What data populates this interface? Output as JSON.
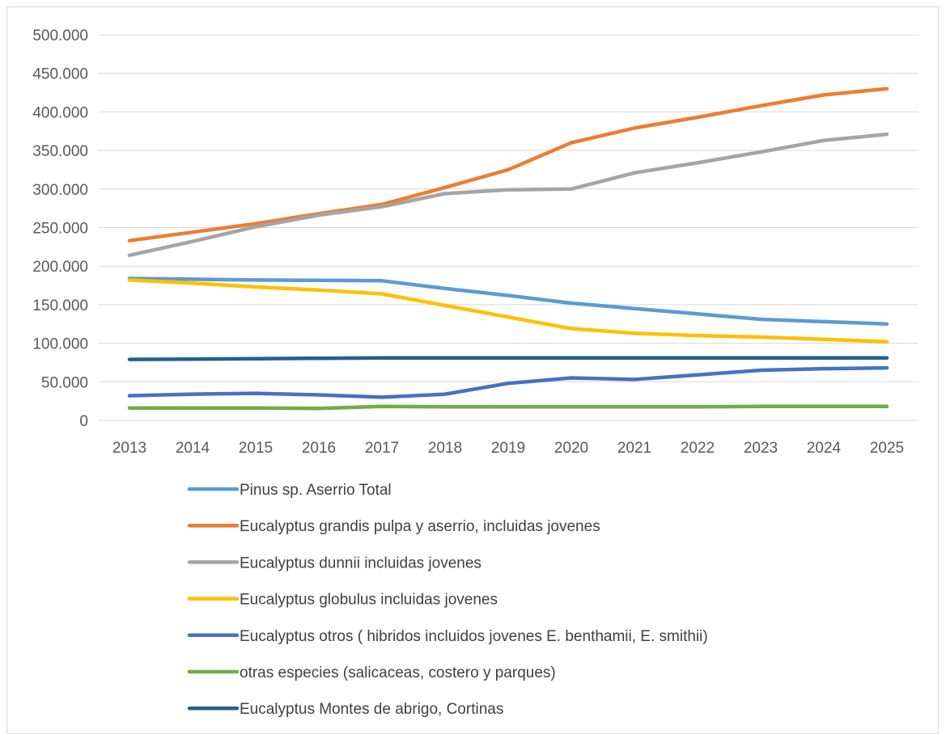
{
  "chart_data": {
    "type": "line",
    "title": "",
    "xlabel": "",
    "ylabel": "",
    "ylim": [
      0,
      500000
    ],
    "y_ticks": [
      "0",
      "50.000",
      "100.000",
      "150.000",
      "200.000",
      "250.000",
      "300.000",
      "350.000",
      "400.000",
      "450.000",
      "500.000"
    ],
    "y_tick_values": [
      0,
      50000,
      100000,
      150000,
      200000,
      250000,
      300000,
      350000,
      400000,
      450000,
      500000
    ],
    "grid": "horizontal",
    "legend_position": "bottom",
    "categories": [
      "2013",
      "2014",
      "2015",
      "2016",
      "2017",
      "2018",
      "2019",
      "2020",
      "2021",
      "2022",
      "2023",
      "2024",
      "2025"
    ],
    "series": [
      {
        "name": "Pinus sp. Aserrio Total",
        "color": "#5B9BD5",
        "values": [
          184000,
          183000,
          182000,
          181500,
          181000,
          171000,
          162000,
          152000,
          145000,
          138000,
          131000,
          128000,
          125000
        ]
      },
      {
        "name": "Eucalyptus grandis pulpa y aserrio, incluidas  jovenes",
        "color": "#ED7D31",
        "values": [
          233000,
          244000,
          255000,
          268000,
          280000,
          302000,
          325000,
          360000,
          379000,
          393000,
          408000,
          422000,
          430000
        ]
      },
      {
        "name": "Eucalyptus dunnii incluidas  jovenes",
        "color": "#A5A5A5",
        "values": [
          214000,
          232000,
          251000,
          266000,
          277000,
          294000,
          299000,
          300000,
          321000,
          334000,
          348000,
          363000,
          371000
        ]
      },
      {
        "name": "Eucalyptus globulus incluidas  jovenes",
        "color": "#FFC000",
        "values": [
          182000,
          178000,
          173000,
          169000,
          164000,
          149000,
          134000,
          119000,
          113000,
          110000,
          108000,
          105000,
          102000
        ]
      },
      {
        "name": "Eucalyptus otros ( hibridos incluidos jovenes E. benthamii, E. smithii)",
        "color": "#4472C4",
        "values": [
          32000,
          34000,
          35000,
          33000,
          30000,
          34000,
          48000,
          55000,
          53000,
          59000,
          65000,
          67000,
          68000
        ]
      },
      {
        "name": "otras especies (salicaceas, costero y parques)",
        "color": "#70AD47",
        "values": [
          16000,
          16000,
          16000,
          15500,
          18000,
          17500,
          17500,
          17500,
          17500,
          17500,
          18000,
          18000,
          18000
        ]
      },
      {
        "name": "Eucalyptus Montes de abrigo, Cortinas",
        "color": "#255E91",
        "values": [
          79000,
          79500,
          80000,
          80500,
          81000,
          81000,
          81000,
          81000,
          81000,
          81000,
          81000,
          81000,
          81000
        ]
      }
    ]
  }
}
